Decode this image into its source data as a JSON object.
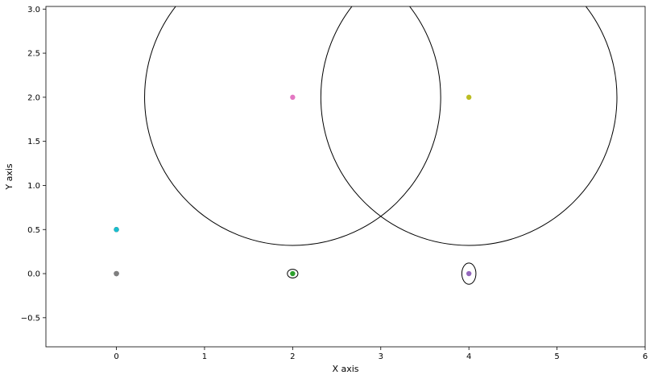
{
  "chart_data": {
    "type": "scatter",
    "xlabel": "X axis",
    "ylabel": "Y axis",
    "xlim": [
      -0.8,
      6.0
    ],
    "ylim": [
      -0.83,
      3.03
    ],
    "xticks": [
      0,
      1,
      2,
      3,
      4,
      5,
      6
    ],
    "yticks": [
      -0.5,
      0.0,
      0.5,
      1.0,
      1.5,
      2.0,
      2.5,
      3.0
    ],
    "xtick_labels": [
      "0",
      "1",
      "2",
      "3",
      "4",
      "5",
      "6"
    ],
    "ytick_labels": [
      "−0.5",
      "0.0",
      "0.5",
      "1.0",
      "1.5",
      "2.0",
      "2.5",
      "3.0"
    ],
    "grid": false,
    "legend": "none",
    "points": [
      {
        "x": 0,
        "y": 0.0,
        "color": "#1f77b4"
      },
      {
        "x": 0,
        "y": 0.0,
        "color": "#8c564b"
      },
      {
        "x": 0,
        "y": 0.0,
        "color": "#7f7f7f"
      },
      {
        "x": 2,
        "y": 0.0,
        "color": "#2ca02c"
      },
      {
        "x": 4,
        "y": 0.0,
        "color": "#9467bd"
      },
      {
        "x": 2,
        "y": 2.0,
        "color": "#e377c2"
      },
      {
        "x": 4,
        "y": 2.0,
        "color": "#bcbd22"
      },
      {
        "x": 0,
        "y": 0.5,
        "color": "#ff7f0e"
      },
      {
        "x": 0,
        "y": 0.5,
        "color": "#d62728"
      },
      {
        "x": 0,
        "y": 0.5,
        "color": "#17becf"
      }
    ],
    "ellipses": [
      {
        "cx": 2,
        "cy": 2.0,
        "rx": 1.68,
        "ry": 1.68,
        "color": "#000000"
      },
      {
        "cx": 4,
        "cy": 2.0,
        "rx": 1.68,
        "ry": 1.68,
        "color": "#000000"
      },
      {
        "cx": 2,
        "cy": 0.0,
        "rx": 0.06,
        "ry": 0.05,
        "color": "#000000"
      },
      {
        "cx": 4,
        "cy": 0.0,
        "rx": 0.08,
        "ry": 0.12,
        "color": "#000000"
      }
    ]
  }
}
